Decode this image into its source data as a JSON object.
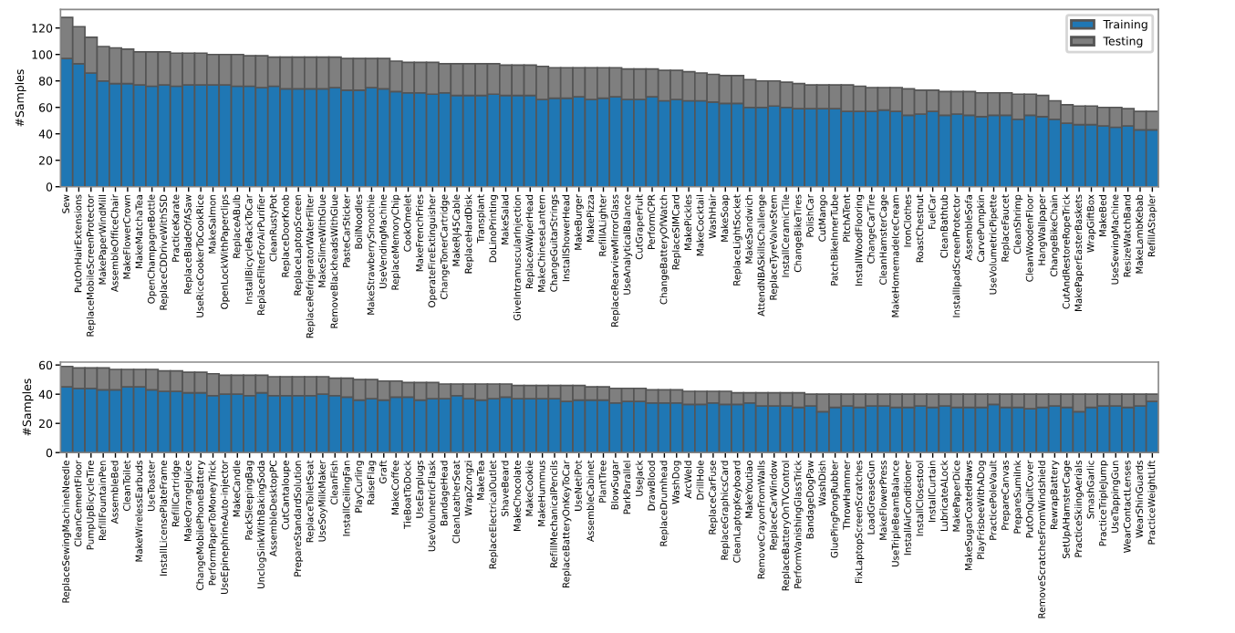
{
  "chart_data": [
    {
      "type": "bar",
      "stacked": true,
      "ylabel": "#Samples",
      "ylim": [
        0,
        134
      ],
      "yticks": [
        0,
        20,
        40,
        60,
        80,
        100,
        120
      ],
      "grid": false,
      "legend": "top right",
      "categories": [
        "Sew",
        "PutOnHairExtensions",
        "ReplaceMobileScreenProtector",
        "MakePaperWindMill",
        "AssembleOfficeChair",
        "MakeFlowerCrown",
        "MakeMatchaTea",
        "OpenChampagneBottle",
        "ReplaceCDDriveWithSSD",
        "PracticeKarate",
        "ReplaceBladeOfASaw",
        "UseRiceCookerToCookRice",
        "MakeSalmon",
        "OpenLockWithPaperclips",
        "ReplaceABulb",
        "InstallBicycleRackToCar",
        "ReplaceFilterForAirPurifier",
        "CleanRustyPot",
        "ReplaceDoorKnob",
        "ReplaceLaptopScreen",
        "ReplaceRefrigeratorWaterFilter",
        "MakeSlimeWithGlue",
        "RemoveBlackheadsWithGlue",
        "PasteCarSticker",
        "BoilNoodles",
        "MakeStrawberrySmoothie",
        "UseVendingMachine",
        "ReplaceMemoryChip",
        "CookOmelet",
        "MakeFrenchFries",
        "OperateFireExtinguisher",
        "ChangeTonerCartridge",
        "MakeRJ45Cable",
        "ReplaceHardDisk",
        "Transplant",
        "DoLinoPrinting",
        "MakeSalad",
        "GiveIntramuscularInjection",
        "ReplaceAWiperHead",
        "MakeChineseLantern",
        "ChangeGuitarStrings",
        "InstallShowerHead",
        "MakeBurger",
        "MakePizza",
        "RefillALighter",
        "ReplaceRearviewMirrorGlass",
        "UseAnalyticalBalance",
        "CutGrapeFruit",
        "PerformCPR",
        "ChangeBatteryOfWatch",
        "ReplaceSIMCard",
        "MakePickles",
        "MakeCocktail",
        "WashHair",
        "MakeSoap",
        "ReplaceLightSocket",
        "MakeSandwich",
        "AttendNBASkillsChallenge",
        "ReplaceTyreValveStem",
        "InstallCeramicTile",
        "ChangeBikeTires",
        "PolishCar",
        "CutMango",
        "PatchBikeInnerTube",
        "PitchATent",
        "InstallWoodFlooring",
        "ChangeCarTire",
        "CleanHamsterCage",
        "MakeHomemadeIceCream",
        "IronClothes",
        "RoastChestnut",
        "FuelCar",
        "CleanBathtub",
        "InstallIpadScreenProtector",
        "AssembleSofa",
        "CarvePumpkin",
        "UseVolumetricPipette",
        "ReplaceFaucet",
        "CleanShrimp",
        "CleanWoodenFloor",
        "HangWallpaper",
        "ChangeBikeChain",
        "CutAndRestoreRopeTrick",
        "MakePaperEasterBaskets",
        "WrapGiftBox",
        "MakeBed",
        "UseSewingMachine",
        "ResizeWatchBand",
        "MakeLambKebab",
        "RefillAStapler"
      ],
      "series": [
        {
          "name": "Training",
          "color": "#1f77b4",
          "values": [
            97,
            93,
            86,
            80,
            78,
            78,
            77,
            76,
            77,
            76,
            77,
            77,
            77,
            77,
            76,
            76,
            75,
            76,
            74,
            74,
            74,
            74,
            75,
            73,
            73,
            75,
            74,
            72,
            71,
            71,
            70,
            71,
            69,
            69,
            69,
            70,
            69,
            69,
            69,
            66,
            67,
            67,
            68,
            66,
            67,
            68,
            66,
            66,
            68,
            65,
            66,
            65,
            65,
            64,
            63,
            63,
            60,
            60,
            61,
            60,
            59,
            59,
            59,
            59,
            57,
            57,
            57,
            58,
            57,
            54,
            55,
            57,
            54,
            55,
            54,
            53,
            54,
            54,
            51,
            54,
            53,
            51,
            48,
            47,
            47,
            46,
            45,
            46,
            43,
            43
          ]
        },
        {
          "name": "Testing",
          "color": "#7f7f7f",
          "values": [
            31,
            28,
            27,
            26,
            27,
            26,
            25,
            26,
            25,
            25,
            24,
            24,
            23,
            23,
            24,
            23,
            24,
            22,
            24,
            24,
            24,
            24,
            23,
            24,
            24,
            22,
            23,
            23,
            23,
            23,
            24,
            22,
            24,
            24,
            24,
            23,
            23,
            23,
            23,
            25,
            23,
            23,
            22,
            24,
            23,
            22,
            23,
            23,
            21,
            23,
            22,
            22,
            21,
            21,
            21,
            21,
            21,
            20,
            19,
            19,
            19,
            18,
            18,
            18,
            20,
            19,
            18,
            17,
            18,
            20,
            18,
            16,
            18,
            17,
            18,
            18,
            17,
            17,
            19,
            16,
            16,
            14,
            14,
            14,
            14,
            14,
            15,
            13,
            14,
            14
          ]
        }
      ]
    },
    {
      "type": "bar",
      "stacked": true,
      "ylabel": "#Samples",
      "ylim": [
        0,
        62
      ],
      "yticks": [
        0,
        20,
        40,
        60
      ],
      "grid": false,
      "categories": [
        "ReplaceSewingMachineNeedle",
        "CleanCementFloor",
        "PumpUpBicycleTire",
        "RefillFountainPen",
        "AssembleBed",
        "CleanToilet",
        "MakeWirelessEarbuds",
        "UseToaster",
        "InstallLicensePlateFrame",
        "RefillCartridge",
        "MakeOrangeJuice",
        "ChangeMobilePhoneBattery",
        "PerformPaperToMoneyTrick",
        "UseEpinephrineAuto-injector",
        "MakeCandle",
        "PackSleepingBag",
        "UnclogSinkWithBakingSoda",
        "AssembleDesktopPC",
        "CutCantaloupe",
        "PrepareStandardSolution",
        "ReplaceToiletSeat",
        "UseSoyMilkMaker",
        "CleanFish",
        "InstallCeilingFan",
        "PlayCurling",
        "RaiseFlag",
        "Graft",
        "MakeCoffee",
        "TieBoatToDock",
        "UseEarplugs",
        "UseVolumetricFlask",
        "BandageHead",
        "CleanLeatherSeat",
        "WrapZongzi",
        "MakeTea",
        "ReplaceElectricalOutlet",
        "ShaveBeard",
        "MakeChocolate",
        "MakeCookie",
        "MakeHummus",
        "RefillMechanicalPencils",
        "ReplaceBatteryOnKeyToCar",
        "UseNetiPot",
        "AssembleCabinet",
        "PlantTree",
        "BlowSugar",
        "ParkParallel",
        "UseJack",
        "DrawBlood",
        "ReplaceDrumhead",
        "WashDog",
        "ArcWeld",
        "DrillHole",
        "ReplaceCarFuse",
        "ReplaceGraphicsCard",
        "CleanLaptopKeyboard",
        "MakeYoutiao",
        "RemoveCrayonFromWalls",
        "ReplaceCarWindow",
        "ReplaceBatteryOnTVControl",
        "PerformVanishingGlassTrick",
        "BandageDogPaw",
        "WashDish",
        "GluePingPongRubber",
        "ThrowHammer",
        "FixLaptopScreenScratches",
        "LoadGreaseGun",
        "MakeFlowerPress",
        "UseTripleBeamBalance",
        "InstallAirConditioner",
        "InstallClosestool",
        "InstallCurtain",
        "LubricateALock",
        "MakePaperDice",
        "MakeSugarCoatedHaws",
        "PlayFrisbeeWithADog",
        "PracticePoleVault",
        "PrepareCanvas",
        "PrepareSumiInk",
        "PutOnQuiltCover",
        "RemoveScratchesFromWindshield",
        "RewrapBattery",
        "SetUpAHamsterCage",
        "PracticeSkiingAerials",
        "SmashGarlic",
        "PracticeTripleJump",
        "UseTappingGun",
        "WearContactLenses",
        "WearShinGuards",
        "PracticeWeightLift"
      ],
      "series": [
        {
          "color": "#1f77b4",
          "values": [
            45,
            44,
            44,
            43,
            43,
            45,
            45,
            43,
            42,
            42,
            41,
            41,
            39,
            40,
            40,
            39,
            41,
            39,
            39,
            39,
            39,
            40,
            39,
            38,
            36,
            37,
            36,
            38,
            38,
            36,
            37,
            37,
            39,
            37,
            36,
            37,
            38,
            37,
            37,
            37,
            37,
            35,
            36,
            36,
            36,
            34,
            35,
            35,
            34,
            34,
            34,
            33,
            33,
            34,
            33,
            33,
            34,
            32,
            32,
            32,
            31,
            32,
            28,
            31,
            32,
            31,
            32,
            32,
            31,
            31,
            32,
            31,
            32,
            31,
            31,
            31,
            33,
            31,
            31,
            30,
            31,
            32,
            31,
            28,
            31,
            32,
            32,
            31,
            32,
            35
          ]
        },
        {
          "color": "#7f7f7f",
          "values": [
            14,
            14,
            14,
            15,
            14,
            12,
            12,
            14,
            14,
            14,
            14,
            14,
            15,
            13,
            13,
            14,
            12,
            13,
            13,
            13,
            13,
            12,
            12,
            13,
            14,
            13,
            13,
            11,
            10,
            12,
            11,
            10,
            8,
            10,
            11,
            10,
            9,
            9,
            9,
            9,
            9,
            11,
            10,
            9,
            9,
            10,
            9,
            9,
            9,
            9,
            9,
            9,
            9,
            8,
            9,
            8,
            7,
            9,
            9,
            9,
            10,
            8,
            12,
            9,
            8,
            9,
            8,
            8,
            9,
            9,
            8,
            9,
            8,
            9,
            9,
            9,
            7,
            9,
            9,
            10,
            9,
            8,
            9,
            12,
            9,
            8,
            8,
            9,
            8,
            5
          ]
        }
      ]
    }
  ]
}
